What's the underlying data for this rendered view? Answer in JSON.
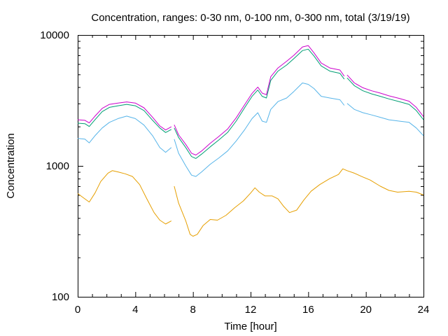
{
  "chart_data": {
    "type": "line",
    "title": "Concentration, ranges: 0-30 nm, 0-100 nm, 0-300 nm, total (3/19/19)",
    "xlabel": "Time [hour]",
    "ylabel": "Concentration",
    "xlim": [
      0,
      24
    ],
    "ylim": [
      100,
      10000
    ],
    "yscale": "log",
    "grid": false,
    "legend": "none",
    "x_ticks": [
      0,
      4,
      8,
      12,
      16,
      20,
      24
    ],
    "x_tick_labels": [
      "0",
      "4",
      "8",
      "12",
      "16",
      "20",
      "24"
    ],
    "y_ticks": [
      100,
      1000,
      10000
    ],
    "y_tick_labels": [
      "100",
      "1000",
      "10000"
    ],
    "series": [
      {
        "color": "#e69f00",
        "segments": [
          [
            [
              0,
              615
            ],
            [
              0.5,
              560
            ],
            [
              0.8,
              530
            ],
            [
              1.2,
              620
            ],
            [
              1.6,
              760
            ],
            [
              2.1,
              880
            ],
            [
              2.4,
              920
            ],
            [
              2.8,
              900
            ],
            [
              3.3,
              870
            ],
            [
              3.8,
              830
            ],
            [
              4.3,
              720
            ],
            [
              4.8,
              560
            ],
            [
              5.3,
              440
            ],
            [
              5.7,
              385
            ],
            [
              6.1,
              360
            ],
            [
              6.5,
              380
            ]
          ],
          [
            [
              6.7,
              700
            ],
            [
              7,
              520
            ],
            [
              7.5,
              380
            ],
            [
              7.8,
              300
            ],
            [
              8.0,
              290
            ],
            [
              8.3,
              300
            ],
            [
              8.7,
              350
            ],
            [
              9.2,
              390
            ],
            [
              9.7,
              385
            ],
            [
              10.3,
              420
            ],
            [
              10.9,
              480
            ],
            [
              11.5,
              540
            ],
            [
              12.0,
              620
            ],
            [
              12.3,
              680
            ],
            [
              12.6,
              630
            ],
            [
              13.0,
              590
            ],
            [
              13.5,
              590
            ],
            [
              13.9,
              560
            ],
            [
              14.3,
              490
            ],
            [
              14.7,
              440
            ],
            [
              15.2,
              460
            ],
            [
              15.7,
              550
            ],
            [
              16.2,
              640
            ],
            [
              16.8,
              720
            ],
            [
              17.5,
              800
            ],
            [
              18.1,
              860
            ],
            [
              18.4,
              950
            ],
            [
              18.7,
              920
            ],
            [
              19.2,
              880
            ],
            [
              19.7,
              830
            ],
            [
              20.3,
              780
            ],
            [
              21.0,
              700
            ],
            [
              21.6,
              650
            ],
            [
              22.2,
              630
            ],
            [
              23.0,
              640
            ],
            [
              23.5,
              630
            ],
            [
              24,
              600
            ]
          ]
        ]
      },
      {
        "color": "#56b4e9",
        "segments": [
          [
            [
              0,
              1620
            ],
            [
              0.5,
              1600
            ],
            [
              0.8,
              1500
            ],
            [
              1.2,
              1700
            ],
            [
              1.7,
              1950
            ],
            [
              2.2,
              2150
            ],
            [
              2.8,
              2300
            ],
            [
              3.4,
              2400
            ],
            [
              4.0,
              2300
            ],
            [
              4.6,
              2050
            ],
            [
              5.2,
              1700
            ],
            [
              5.7,
              1380
            ],
            [
              6.1,
              1270
            ],
            [
              6.5,
              1380
            ]
          ],
          [
            [
              6.7,
              1600
            ],
            [
              7,
              1250
            ],
            [
              7.5,
              1000
            ],
            [
              7.9,
              850
            ],
            [
              8.2,
              830
            ],
            [
              8.6,
              900
            ],
            [
              9.2,
              1030
            ],
            [
              9.8,
              1150
            ],
            [
              10.4,
              1300
            ],
            [
              11.0,
              1550
            ],
            [
              11.6,
              1900
            ],
            [
              12.1,
              2300
            ],
            [
              12.5,
              2550
            ],
            [
              12.8,
              2200
            ],
            [
              13.1,
              2150
            ],
            [
              13.4,
              2700
            ],
            [
              13.9,
              3100
            ],
            [
              14.5,
              3300
            ],
            [
              15.0,
              3700
            ],
            [
              15.6,
              4300
            ],
            [
              16.0,
              4200
            ],
            [
              16.4,
              3900
            ],
            [
              16.9,
              3400
            ],
            [
              17.5,
              3300
            ],
            [
              18.2,
              3200
            ],
            [
              18.5,
              2900
            ]
          ],
          [
            [
              18.7,
              3000
            ],
            [
              19.2,
              2700
            ],
            [
              19.8,
              2550
            ],
            [
              20.4,
              2450
            ],
            [
              21.0,
              2350
            ],
            [
              21.6,
              2250
            ],
            [
              22.3,
              2200
            ],
            [
              23.0,
              2150
            ],
            [
              23.5,
              1950
            ],
            [
              24,
              1700
            ]
          ]
        ]
      },
      {
        "color": "#009e73",
        "segments": [
          [
            [
              0,
              2120
            ],
            [
              0.5,
              2100
            ],
            [
              0.8,
              2000
            ],
            [
              1.2,
              2250
            ],
            [
              1.7,
              2600
            ],
            [
              2.2,
              2800
            ],
            [
              2.8,
              2880
            ],
            [
              3.4,
              2950
            ],
            [
              4.0,
              2880
            ],
            [
              4.6,
              2650
            ],
            [
              5.2,
              2230
            ],
            [
              5.7,
              1950
            ],
            [
              6.1,
              1800
            ],
            [
              6.5,
              1900
            ]
          ],
          [
            [
              6.7,
              1950
            ],
            [
              7,
              1650
            ],
            [
              7.5,
              1380
            ],
            [
              7.9,
              1180
            ],
            [
              8.2,
              1140
            ],
            [
              8.6,
              1230
            ],
            [
              9.2,
              1400
            ],
            [
              9.8,
              1580
            ],
            [
              10.4,
              1800
            ],
            [
              11.0,
              2200
            ],
            [
              11.6,
              2800
            ],
            [
              12.1,
              3400
            ],
            [
              12.5,
              3800
            ],
            [
              12.8,
              3400
            ],
            [
              13.1,
              3300
            ],
            [
              13.4,
              4500
            ],
            [
              13.9,
              5300
            ],
            [
              14.5,
              5900
            ],
            [
              15.0,
              6600
            ],
            [
              15.6,
              7600
            ],
            [
              16.0,
              7800
            ],
            [
              16.4,
              6900
            ],
            [
              16.9,
              5800
            ],
            [
              17.5,
              5300
            ],
            [
              18.2,
              5100
            ],
            [
              18.5,
              4600
            ]
          ],
          [
            [
              18.7,
              4700
            ],
            [
              19.2,
              4100
            ],
            [
              19.8,
              3750
            ],
            [
              20.4,
              3550
            ],
            [
              21.0,
              3400
            ],
            [
              21.6,
              3250
            ],
            [
              22.3,
              3100
            ],
            [
              23.0,
              2950
            ],
            [
              23.5,
              2650
            ],
            [
              24,
              2250
            ]
          ]
        ]
      },
      {
        "color": "#cc00cc",
        "segments": [
          [
            [
              0,
              2250
            ],
            [
              0.5,
              2230
            ],
            [
              0.8,
              2130
            ],
            [
              1.2,
              2400
            ],
            [
              1.7,
              2750
            ],
            [
              2.2,
              2950
            ],
            [
              2.8,
              3020
            ],
            [
              3.4,
              3080
            ],
            [
              4.0,
              3020
            ],
            [
              4.6,
              2780
            ],
            [
              5.2,
              2350
            ],
            [
              5.7,
              2020
            ],
            [
              6.1,
              1880
            ],
            [
              6.5,
              1990
            ]
          ],
          [
            [
              6.7,
              2060
            ],
            [
              7,
              1730
            ],
            [
              7.5,
              1460
            ],
            [
              7.9,
              1250
            ],
            [
              8.2,
              1210
            ],
            [
              8.6,
              1300
            ],
            [
              9.2,
              1490
            ],
            [
              9.8,
              1680
            ],
            [
              10.4,
              1910
            ],
            [
              11.0,
              2330
            ],
            [
              11.6,
              2950
            ],
            [
              12.1,
              3580
            ],
            [
              12.5,
              4000
            ],
            [
              12.8,
              3600
            ],
            [
              13.1,
              3500
            ],
            [
              13.4,
              4800
            ],
            [
              13.9,
              5600
            ],
            [
              14.5,
              6300
            ],
            [
              15.0,
              7000
            ],
            [
              15.6,
              8100
            ],
            [
              16.0,
              8300
            ],
            [
              16.4,
              7300
            ],
            [
              16.9,
              6100
            ],
            [
              17.5,
              5600
            ],
            [
              18.2,
              5400
            ],
            [
              18.5,
              4850
            ]
          ],
          [
            [
              18.7,
              4950
            ],
            [
              19.2,
              4300
            ],
            [
              19.8,
              3950
            ],
            [
              20.4,
              3750
            ],
            [
              21.0,
              3600
            ],
            [
              21.6,
              3430
            ],
            [
              22.3,
              3280
            ],
            [
              23.0,
              3120
            ],
            [
              23.5,
              2800
            ],
            [
              24,
              2380
            ]
          ]
        ]
      }
    ]
  }
}
